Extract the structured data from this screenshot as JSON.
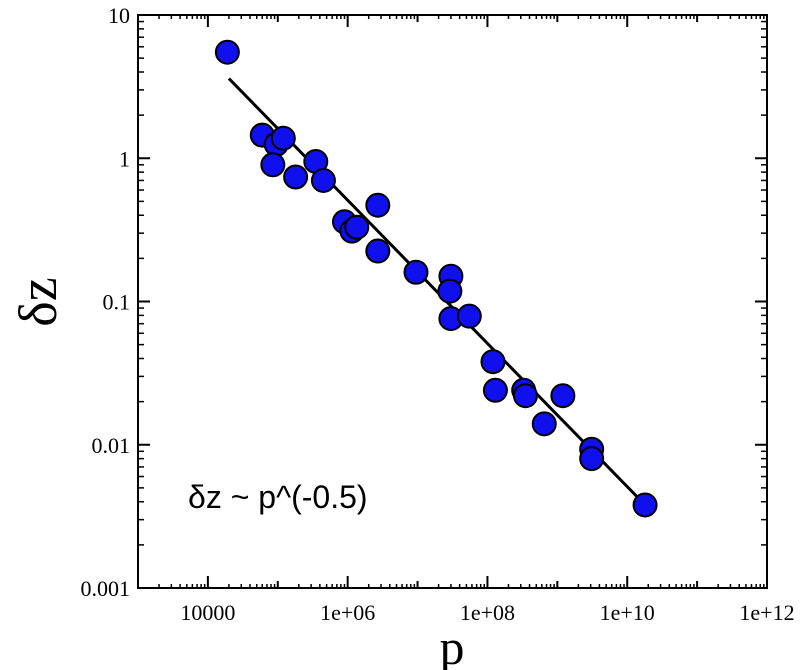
{
  "chart_data": {
    "type": "scatter",
    "title": "",
    "xlabel": "p",
    "ylabel": "δz",
    "x_scale": "log",
    "y_scale": "log",
    "xlim": [
      1000,
      1000000000000.0
    ],
    "ylim": [
      0.001,
      10
    ],
    "x_tick_labels": [
      "10000",
      "1e+06",
      "1e+08",
      "1e+10",
      "1e+12"
    ],
    "x_tick_values": [
      10000,
      1000000,
      100000000,
      10000000000,
      1000000000000
    ],
    "y_tick_labels": [
      "0.001",
      "0.01",
      "0.1",
      "1",
      "10"
    ],
    "y_tick_values": [
      0.001,
      0.01,
      0.1,
      1,
      10
    ],
    "grid": false,
    "legend": "none",
    "annotation": "δz  ~  p^(-0.5)",
    "point_color": "#1010ee",
    "point_edge_color": "#000000",
    "line_color": "#000000",
    "series": [
      {
        "points": [
          [
            19000,
            5.5
          ],
          [
            60000,
            1.45
          ],
          [
            95000,
            1.25
          ],
          [
            120000,
            1.38
          ],
          [
            85000,
            0.9
          ],
          [
            180000,
            0.74
          ],
          [
            350000,
            0.95
          ],
          [
            450000,
            0.7
          ],
          [
            900000,
            0.36
          ],
          [
            1150000,
            0.31
          ],
          [
            1350000,
            0.33
          ],
          [
            2700000,
            0.47
          ],
          [
            2700000,
            0.225
          ],
          [
            9500000,
            0.16
          ],
          [
            30000000,
            0.15
          ],
          [
            29000000,
            0.118
          ],
          [
            30000000,
            0.076
          ],
          [
            55000000,
            0.079
          ],
          [
            120000000,
            0.038
          ],
          [
            130000000,
            0.024
          ],
          [
            330000000,
            0.024
          ],
          [
            350000000,
            0.022
          ],
          [
            650000000,
            0.014
          ],
          [
            1200000000,
            0.022
          ],
          [
            3100000000,
            0.0093
          ],
          [
            3100000000,
            0.008
          ],
          [
            18000000000,
            0.0038
          ]
        ]
      }
    ],
    "fit_line": {
      "x": [
        20000,
        18000000000
      ],
      "y": [
        3.6,
        0.0038
      ]
    }
  }
}
